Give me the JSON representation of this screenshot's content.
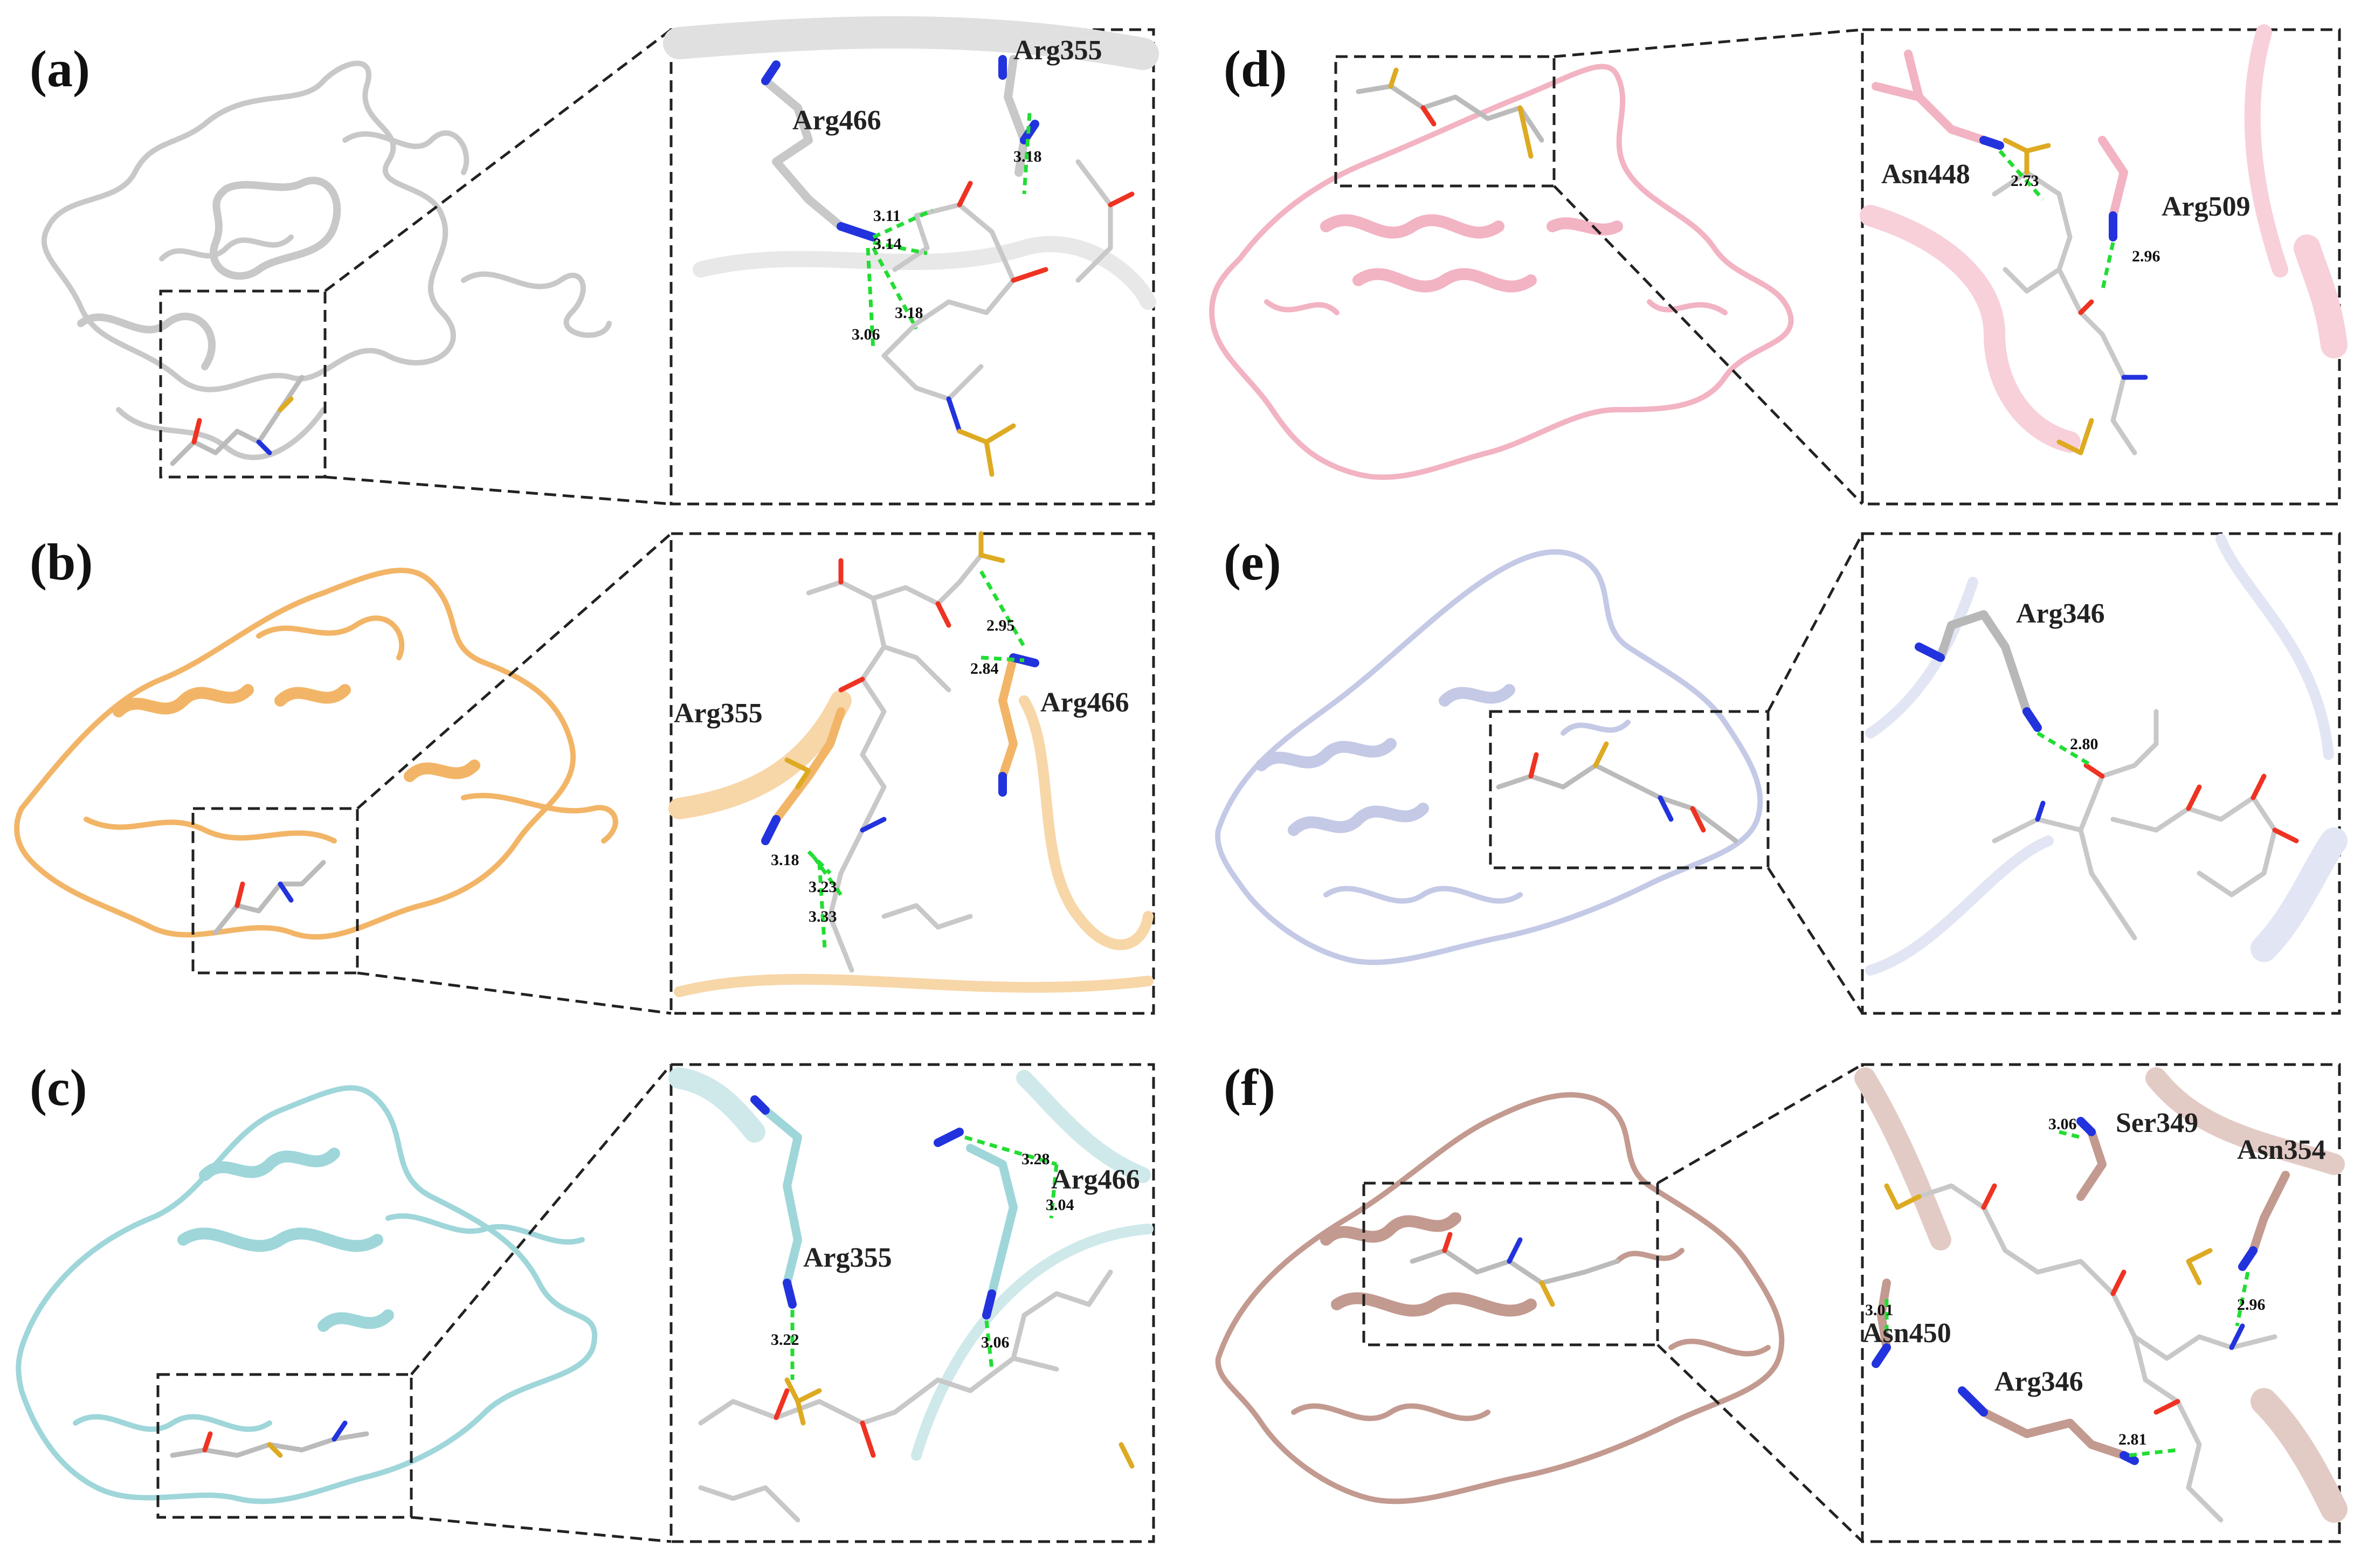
{
  "panels": [
    {
      "label": "(a)",
      "color": "#c8c8c8",
      "residues": [
        "Arg466",
        "Arg355"
      ],
      "distances": [
        "3.18",
        "3.11",
        "3.14",
        "3.18",
        "3.06"
      ]
    },
    {
      "label": "(b)",
      "color": "#f2b567",
      "residues": [
        "Arg355",
        "Arg466"
      ],
      "distances": [
        "2.95",
        "2.84",
        "3.18",
        "3.23",
        "3.33"
      ]
    },
    {
      "label": "(c)",
      "color": "#9fd6da",
      "residues": [
        "Arg355",
        "Arg466"
      ],
      "distances": [
        "3.22",
        "3.28",
        "3.04",
        "3.06"
      ]
    },
    {
      "label": "(d)",
      "color": "#f2b3c3",
      "residues": [
        "Asn448",
        "Arg509"
      ],
      "distances": [
        "2.73",
        "2.96"
      ]
    },
    {
      "label": "(e)",
      "color": "#c4c9e6",
      "residues": [
        "Arg346"
      ],
      "distances": [
        "2.80"
      ]
    },
    {
      "label": "(f)",
      "color": "#c39a90",
      "residues": [
        "Ser349",
        "Asn354",
        "Asn450",
        "Arg346"
      ],
      "distances": [
        "3.06",
        "3.01",
        "2.96",
        "2.81"
      ]
    }
  ],
  "colors": {
    "oxygen": "#ee3322",
    "nitrogen": "#2233dd",
    "sulfur": "#ddaa22",
    "carbon_ligand": "#cccccc",
    "hbond": "#22dd33"
  },
  "icons": [
    "protein-ribbon-structure",
    "ligand-stick-model",
    "hydrogen-bond-dashes"
  ]
}
